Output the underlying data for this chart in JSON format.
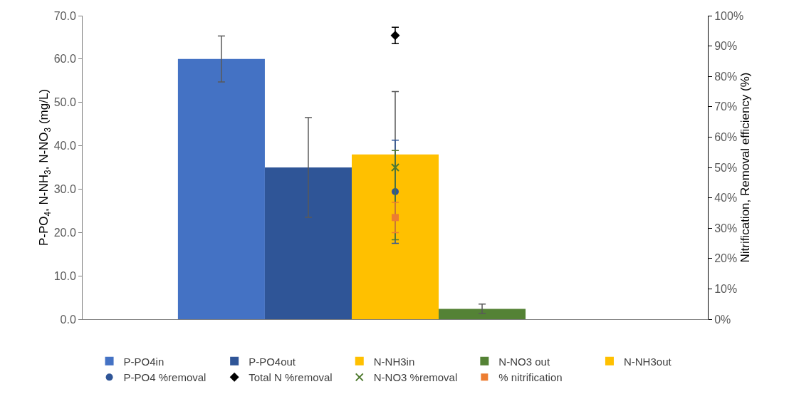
{
  "chart_data": {
    "type": "bar",
    "categories": [
      null
    ],
    "ylabel": "P-PO$_{4}$, N-NH$_{3}$, N-NO$_{3}$ (mg/L)",
    "y2label": "Nitrification, Removal efficiency (%)",
    "ylim": [
      0,
      70
    ],
    "yticks": [
      {
        "value": 0,
        "label": "0.0"
      },
      {
        "value": 10,
        "label": "10.0"
      },
      {
        "value": 20,
        "label": "20.0"
      },
      {
        "value": 30,
        "label": "30.0"
      },
      {
        "value": 40,
        "label": "40.0"
      },
      {
        "value": 50,
        "label": "50.0"
      },
      {
        "value": 60,
        "label": "60.0"
      },
      {
        "value": 70,
        "label": "70.0"
      }
    ],
    "y2lim": [
      0,
      100
    ],
    "y2ticks": [
      {
        "value": 0,
        "label": "0%"
      },
      {
        "value": 10,
        "label": "10%"
      },
      {
        "value": 20,
        "label": "20%"
      },
      {
        "value": 30,
        "label": "30%"
      },
      {
        "value": 40,
        "label": "40%"
      },
      {
        "value": 50,
        "label": "50%"
      },
      {
        "value": 60,
        "label": "60%"
      },
      {
        "value": 70,
        "label": "70%"
      },
      {
        "value": 80,
        "label": "80%"
      },
      {
        "value": 90,
        "label": "90%"
      },
      {
        "value": 100,
        "label": "100%"
      }
    ],
    "grid": false,
    "legend": "bottom",
    "series": [
      {
        "name": "P-PO4in",
        "color": "#4472c4",
        "values": [
          60
        ],
        "errors": [
          5.3
        ]
      },
      {
        "name": "P-PO4out",
        "color": "#2f5597",
        "values": [
          35
        ],
        "errors": [
          11.5
        ]
      },
      {
        "name": "N-NH3in",
        "color": "#ffc000",
        "values": [
          38
        ],
        "errors": [
          14.5
        ]
      },
      {
        "name": "N-NO3 out",
        "color": "#548235",
        "values": [
          2.4
        ],
        "errors": [
          1.1
        ]
      },
      {
        "name": "N-NH3out",
        "color": "#ffc000",
        "values": [
          0
        ]
      },
      {
        "name": "P-PO4 %removal",
        "type": "scatter",
        "axis": "y2",
        "marker": "circle",
        "color": "#2f5597",
        "values": [
          42
        ],
        "errors": [
          17
        ]
      },
      {
        "name": "Total N %removal",
        "type": "scatter",
        "axis": "y2",
        "marker": "diamond",
        "color": "#000000",
        "values": [
          93.5
        ],
        "errors": [
          2.7
        ]
      },
      {
        "name": "N-NO3 %removal",
        "type": "scatter",
        "axis": "y2",
        "marker": "cross",
        "color": "#4e7a2e",
        "values": [
          50
        ],
        "errors": [
          [
            26.2,
            55.6
          ]
        ]
      },
      {
        "name": "% nitrification",
        "type": "scatter",
        "axis": "y2",
        "marker": "square",
        "color": "#ed7d31",
        "values": [
          33.5
        ],
        "errors": [
          5
        ]
      }
    ]
  }
}
